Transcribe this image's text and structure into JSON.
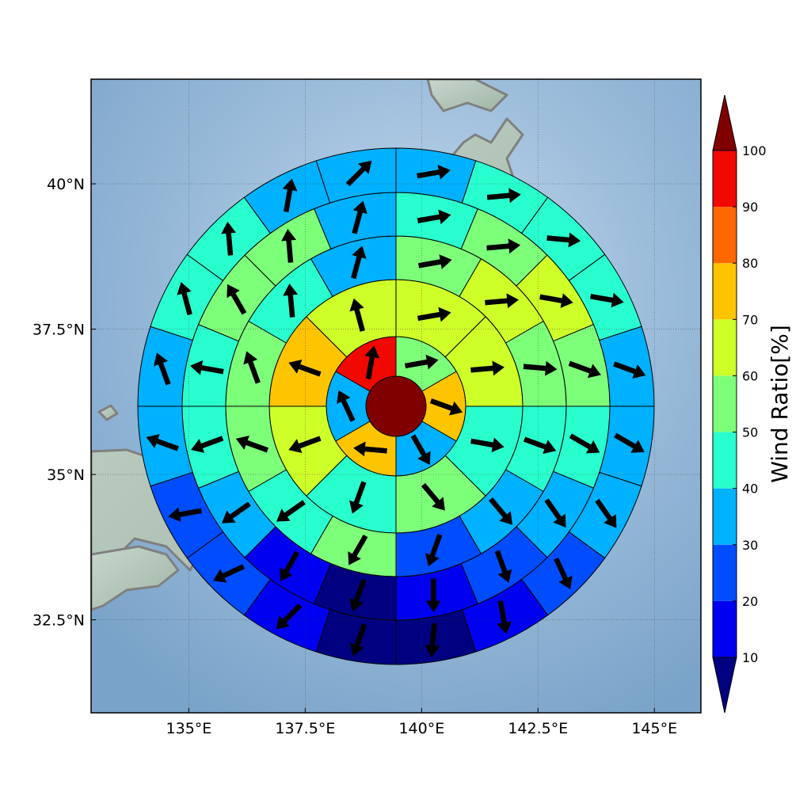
{
  "chart_data": {
    "type": "polar-sector-map",
    "map": {
      "lon_range": [
        132.9,
        146.0
      ],
      "lat_range": [
        30.9,
        41.8
      ],
      "x_ticks": [
        135,
        137.5,
        140,
        142.5,
        145
      ],
      "x_tick_labels": [
        "135°E",
        "137.5°E",
        "140°E",
        "142.5°E",
        "145°E"
      ],
      "y_ticks": [
        32.5,
        35,
        37.5,
        40
      ],
      "y_tick_labels": [
        "32.5°N",
        "35°N",
        "37.5°N",
        "40°N"
      ],
      "grid": true,
      "center": [
        139.5,
        36.2
      ]
    },
    "rings": [
      {
        "sector_count": 0
      },
      {
        "sector_count": 6
      },
      {
        "sector_count": 8
      },
      {
        "sector_count": 12
      },
      {
        "sector_count": 16
      },
      {
        "sector_count": 20
      }
    ],
    "values": [
      [
        100
      ],
      [
        55,
        75,
        35,
        75,
        35,
        95
      ],
      [
        65,
        65,
        45,
        55,
        45,
        65,
        75,
        65
      ],
      [
        55,
        65,
        55,
        45,
        35,
        25,
        55,
        45,
        55,
        55,
        45,
        35
      ],
      [
        45,
        55,
        65,
        55,
        45,
        35,
        25,
        15,
        5,
        15,
        35,
        45,
        45,
        55,
        55,
        35
      ],
      [
        35,
        45,
        45,
        45,
        35,
        35,
        35,
        25,
        15,
        5,
        5,
        15,
        25,
        25,
        35,
        35,
        45,
        45,
        35,
        35
      ]
    ],
    "wind_directions_deg": [
      [],
      [
        80,
        110,
        150,
        275,
        335,
        10
      ],
      [
        80,
        85,
        100,
        140,
        200,
        250,
        290,
        345
      ],
      [
        80,
        85,
        95,
        110,
        140,
        200,
        210,
        235,
        290,
        340,
        355,
        15
      ],
      [
        80,
        85,
        100,
        110,
        120,
        145,
        160,
        180,
        200,
        210,
        235,
        250,
        280,
        330,
        355,
        15
      ],
      [
        80,
        85,
        95,
        100,
        110,
        120,
        145,
        155,
        170,
        185,
        200,
        225,
        245,
        260,
        290,
        340,
        345,
        355,
        10,
        45
      ]
    ],
    "colorbar": {
      "label": "Wind Ratio[%]",
      "ticks": [
        10,
        20,
        30,
        40,
        50,
        60,
        70,
        80,
        90,
        100
      ],
      "bins": [
        0,
        10,
        20,
        30,
        40,
        50,
        60,
        70,
        80,
        90,
        100
      ],
      "colors": [
        "#000080",
        "#0000f1",
        "#004dff",
        "#00b1ff",
        "#29ffce",
        "#7dff7a",
        "#ceff29",
        "#ffc400",
        "#ff6800",
        "#f10800",
        "#800000"
      ],
      "extend": "both"
    }
  }
}
